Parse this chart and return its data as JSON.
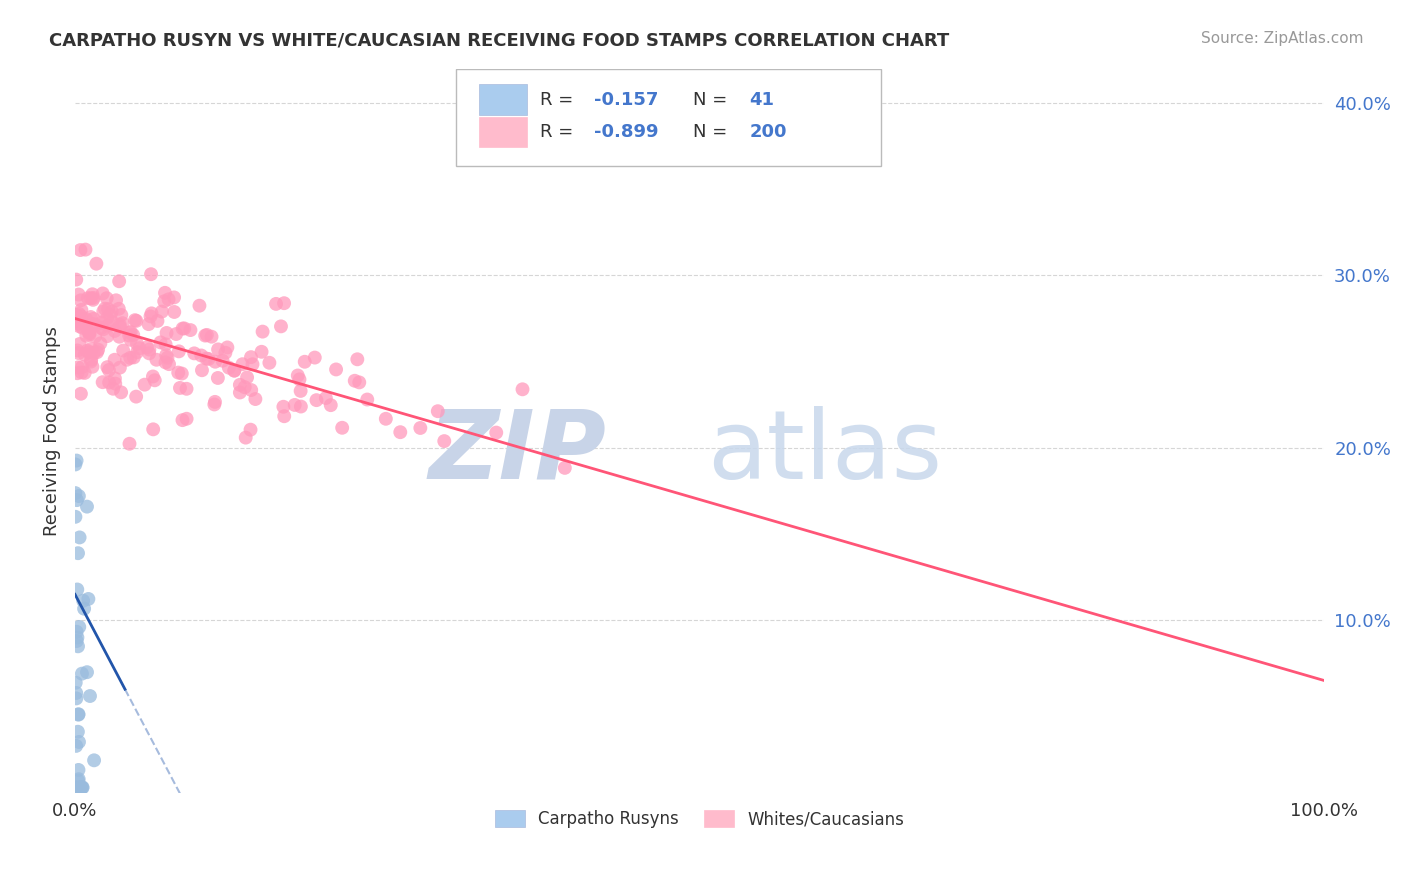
{
  "title": "CARPATHO RUSYN VS WHITE/CAUCASIAN RECEIVING FOOD STAMPS CORRELATION CHART",
  "source": "Source: ZipAtlas.com",
  "ylabel": "Receiving Food Stamps",
  "legend_blue_label": "Carpatho Rusyns",
  "legend_pink_label": "Whites/Caucasians",
  "R_blue": -0.157,
  "N_blue": 41,
  "R_pink": -0.899,
  "N_pink": 200,
  "blue_dot_color": "#99BBDD",
  "pink_dot_color": "#FF99BB",
  "blue_line_color": "#2255AA",
  "pink_line_color": "#FF5577",
  "legend_blue_patch": "#AACCEE",
  "legend_pink_patch": "#FFBBCC",
  "text_color": "#333333",
  "accent_color": "#4477CC",
  "grid_color": "#CCCCCC",
  "xlim": [
    0.0,
    1.0
  ],
  "ylim": [
    0.0,
    0.42
  ],
  "pink_line_x0": 0.0,
  "pink_line_y0": 0.275,
  "pink_line_x1": 1.0,
  "pink_line_y1": 0.065,
  "blue_line_x0": 0.0,
  "blue_line_y0": 0.115,
  "blue_line_x1": 0.04,
  "blue_line_y1": 0.06
}
